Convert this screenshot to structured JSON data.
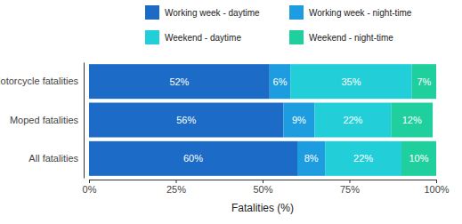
{
  "chart_data": {
    "type": "bar",
    "orientation": "horizontal",
    "stacked": true,
    "data_labels": true,
    "legend": "top",
    "x_label": "Fatalities (%)",
    "categories": [
      "Motorcycle fatalities",
      "Moped fatalities",
      "All fatalities"
    ],
    "xlim": [
      0,
      100
    ],
    "xticks": [
      {
        "value": 0,
        "label": "0%"
      },
      {
        "value": 25,
        "label": "25%"
      },
      {
        "value": 50,
        "label": "50%"
      },
      {
        "value": 75,
        "label": "75%"
      },
      {
        "value": 100,
        "label": "100%"
      }
    ],
    "series": [
      {
        "name": "Working week - daytime",
        "color": "#1c6bc6",
        "values": [
          52,
          56,
          60
        ],
        "value_labels": [
          "52%",
          "56%",
          "60%"
        ]
      },
      {
        "name": "Working week - night-time",
        "color": "#1d9ce0",
        "values": [
          6,
          9,
          8
        ],
        "value_labels": [
          "6%",
          "9%",
          "8%"
        ]
      },
      {
        "name": "Weekend - daytime",
        "color": "#22cfd9",
        "values": [
          35,
          22,
          22
        ],
        "value_labels": [
          "35%",
          "22%",
          "22%"
        ]
      },
      {
        "name": "Weekend - night-time",
        "color": "#1fcf9e",
        "values": [
          7,
          12,
          10
        ],
        "value_labels": [
          "7%",
          "12%",
          "10%"
        ]
      }
    ]
  }
}
